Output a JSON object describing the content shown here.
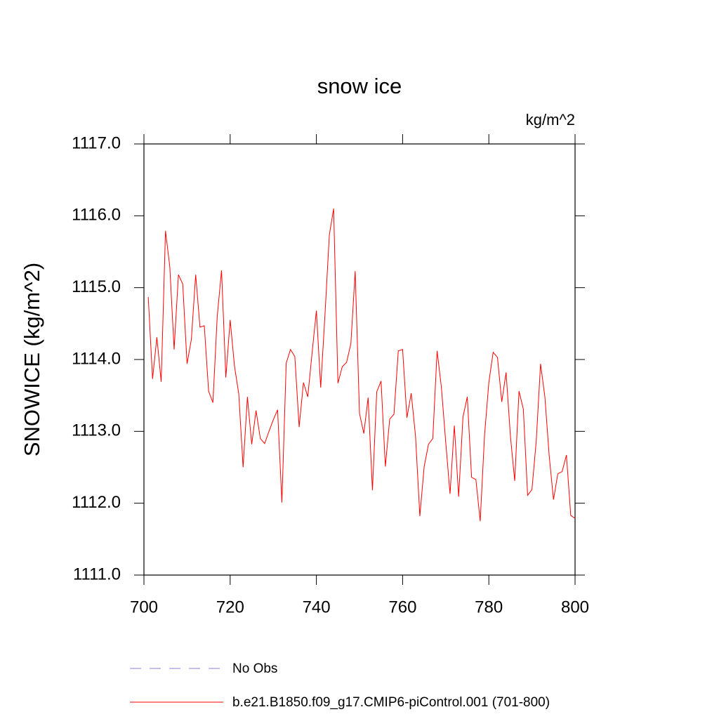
{
  "chart_data": {
    "type": "line",
    "title": "snow ice",
    "units": "kg/m^2",
    "ylabel": "SNOWICE  (kg/m^2)",
    "x": [
      701,
      702,
      703,
      704,
      705,
      706,
      707,
      708,
      709,
      710,
      711,
      712,
      713,
      714,
      715,
      716,
      717,
      718,
      719,
      720,
      721,
      722,
      723,
      724,
      725,
      726,
      727,
      728,
      729,
      730,
      731,
      732,
      733,
      734,
      735,
      736,
      737,
      738,
      739,
      740,
      741,
      742,
      743,
      744,
      745,
      746,
      747,
      748,
      749,
      750,
      751,
      752,
      753,
      754,
      755,
      756,
      757,
      758,
      759,
      760,
      761,
      762,
      763,
      764,
      765,
      766,
      767,
      768,
      769,
      770,
      771,
      772,
      773,
      774,
      775,
      776,
      777,
      778,
      779,
      780,
      781,
      782,
      783,
      784,
      785,
      786,
      787,
      788,
      789,
      790,
      791,
      792,
      793,
      794,
      795,
      796,
      797,
      798,
      799,
      800
    ],
    "series": [
      {
        "name": "b.e21.B1850.f09_g17.CMIP6-piControl.001 (701-800)",
        "color": "#ff0000",
        "values": [
          1114.87,
          1113.73,
          1114.31,
          1113.69,
          1115.79,
          1115.29,
          1114.14,
          1115.18,
          1115.05,
          1113.94,
          1114.28,
          1115.18,
          1114.45,
          1114.47,
          1113.56,
          1113.4,
          1114.6,
          1115.24,
          1113.75,
          1114.55,
          1113.91,
          1113.52,
          1112.5,
          1113.48,
          1112.82,
          1113.29,
          1112.9,
          1112.83,
          1113.0,
          1113.16,
          1113.3,
          1112.01,
          1113.95,
          1114.14,
          1114.04,
          1113.06,
          1113.68,
          1113.48,
          1114.09,
          1114.68,
          1113.61,
          1114.63,
          1115.73,
          1116.1,
          1113.67,
          1113.9,
          1113.96,
          1114.22,
          1115.23,
          1113.25,
          1112.97,
          1113.47,
          1112.18,
          1113.55,
          1113.7,
          1112.51,
          1113.17,
          1113.24,
          1114.12,
          1114.14,
          1113.19,
          1113.53,
          1112.93,
          1111.82,
          1112.51,
          1112.82,
          1112.9,
          1114.12,
          1113.61,
          1112.85,
          1112.13,
          1113.08,
          1112.09,
          1113.2,
          1113.48,
          1112.36,
          1112.33,
          1111.75,
          1112.94,
          1113.68,
          1114.1,
          1114.03,
          1113.41,
          1113.82,
          1112.94,
          1112.31,
          1113.56,
          1113.31,
          1112.11,
          1112.19,
          1112.87,
          1113.94,
          1113.48,
          1112.66,
          1112.05,
          1112.41,
          1112.44,
          1112.67,
          1111.83,
          1111.79
        ]
      }
    ],
    "reference": {
      "name": "No Obs",
      "color": "#8a7fd8",
      "dashed": true
    },
    "xlim": [
      700,
      800
    ],
    "xticks": [
      700,
      720,
      740,
      760,
      780,
      800
    ],
    "ylim": [
      1111,
      1117
    ],
    "yticks": [
      {
        "value": 1111,
        "label": "1111.0"
      },
      {
        "value": 1112,
        "label": "1112.0"
      },
      {
        "value": 1113,
        "label": "1113.0"
      },
      {
        "value": 1114,
        "label": "1114.0"
      },
      {
        "value": 1115,
        "label": "1115.0"
      },
      {
        "value": 1116,
        "label": "1116.0"
      },
      {
        "value": 1117,
        "label": "1117.0"
      }
    ],
    "grid": false
  }
}
